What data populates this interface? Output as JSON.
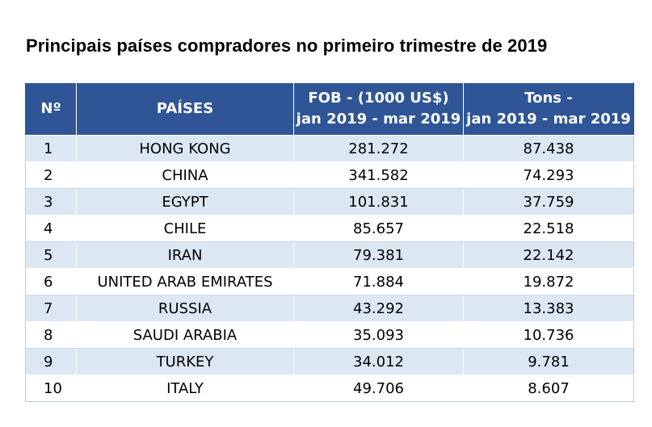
{
  "title": "Principais países compradores no primeiro trimestre de 2019",
  "colors": {
    "header_bg": "#2f5597",
    "header_text": "#ffffff",
    "row_alt_bg": "#dce7f4",
    "row_bg": "#ffffff"
  },
  "table": {
    "headers": {
      "number": "Nº",
      "country": "PAÍSES",
      "fob_line1": "FOB - (1000 US$)",
      "fob_line2": "jan 2019 - mar 2019",
      "tons_line1": "Tons -",
      "tons_line2": "jan 2019 - mar 2019"
    },
    "rows": [
      {
        "n": "1",
        "country": "HONG KONG",
        "fob": "281.272",
        "tons": "87.438"
      },
      {
        "n": "2",
        "country": "CHINA",
        "fob": "341.582",
        "tons": "74.293"
      },
      {
        "n": "3",
        "country": "EGYPT",
        "fob": "101.831",
        "tons": "37.759"
      },
      {
        "n": "4",
        "country": "CHILE",
        "fob": "85.657",
        "tons": "22.518"
      },
      {
        "n": "5",
        "country": "IRAN",
        "fob": "79.381",
        "tons": "22.142"
      },
      {
        "n": "6",
        "country": "UNITED ARAB EMIRATES",
        "fob": "71.884",
        "tons": "19.872"
      },
      {
        "n": "7",
        "country": "RUSSIA",
        "fob": "43.292",
        "tons": "13.383"
      },
      {
        "n": "8",
        "country": "SAUDI ARABIA",
        "fob": "35.093",
        "tons": "10.736"
      },
      {
        "n": "9",
        "country": "TURKEY",
        "fob": "34.012",
        "tons": "9.781"
      },
      {
        "n": "10",
        "country": "ITALY",
        "fob": "49.706",
        "tons": "8.607"
      }
    ]
  }
}
